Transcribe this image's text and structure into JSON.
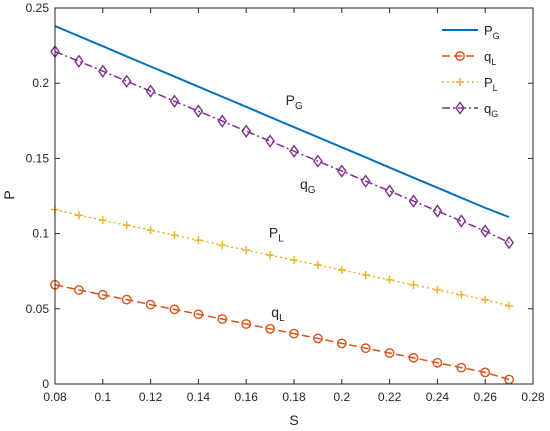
{
  "chart_data": {
    "type": "line",
    "title": "",
    "xlabel": "S",
    "ylabel": "P",
    "xlim": [
      0.08,
      0.28
    ],
    "ylim": [
      0,
      0.25
    ],
    "xticks": [
      "0.08",
      "0.1",
      "0.12",
      "0.14",
      "0.16",
      "0.18",
      "0.2",
      "0.22",
      "0.24",
      "0.26",
      "0.28"
    ],
    "yticks": [
      "0",
      "0.05",
      "0.1",
      "0.15",
      "0.2",
      "0.25"
    ],
    "grid": false,
    "legend_position": "top-right",
    "x": [
      0.08,
      0.09,
      0.1,
      0.11,
      0.12,
      0.13,
      0.14,
      0.15,
      0.16,
      0.17,
      0.18,
      0.19,
      0.2,
      0.21,
      0.22,
      0.23,
      0.24,
      0.25,
      0.26,
      0.27
    ],
    "series": [
      {
        "key": "PG",
        "name": "P",
        "name_sub": "G",
        "color": "#0072bd",
        "style": "solid",
        "marker": "none",
        "values": [
          0.238,
          0.2313,
          0.2246,
          0.2178,
          0.2111,
          0.2044,
          0.1977,
          0.191,
          0.1843,
          0.1775,
          0.1708,
          0.1641,
          0.1574,
          0.1507,
          0.1439,
          0.1372,
          0.1305,
          0.1238,
          0.1171,
          0.111
        ]
      },
      {
        "key": "qL",
        "name": "q",
        "name_sub": "L",
        "color": "#d95319",
        "style": "dashed",
        "marker": "circle",
        "values": [
          0.066,
          0.0625,
          0.0593,
          0.0561,
          0.0528,
          0.0496,
          0.0464,
          0.0432,
          0.0399,
          0.0367,
          0.0335,
          0.0303,
          0.027,
          0.0238,
          0.0206,
          0.0174,
          0.0141,
          0.0109,
          0.0077,
          0.003
        ]
      },
      {
        "key": "PL",
        "name": "P",
        "name_sub": "L",
        "color": "#edb120",
        "style": "dotted",
        "marker": "plus",
        "values": [
          0.116,
          0.1122,
          0.1089,
          0.1056,
          0.1023,
          0.099,
          0.0956,
          0.0923,
          0.089,
          0.0857,
          0.0824,
          0.0791,
          0.0758,
          0.0725,
          0.0692,
          0.0659,
          0.0626,
          0.0593,
          0.056,
          0.052
        ]
      },
      {
        "key": "qG",
        "name": "q",
        "name_sub": "G",
        "color": "#7e2f8e",
        "style": "dashdot",
        "marker": "diamond",
        "values": [
          0.221,
          0.2146,
          0.208,
          0.2013,
          0.1947,
          0.188,
          0.1814,
          0.1748,
          0.1681,
          0.1615,
          0.1548,
          0.1482,
          0.1416,
          0.1349,
          0.1283,
          0.1216,
          0.115,
          0.1084,
          0.1017,
          0.094
        ]
      }
    ],
    "annotations": [
      {
        "text": "P",
        "sub": "G",
        "x": 0.1765,
        "y": 0.1855
      },
      {
        "text": "q",
        "sub": "G",
        "x": 0.1825,
        "y": 0.1295
      },
      {
        "text": "P",
        "sub": "L",
        "x": 0.1695,
        "y": 0.0975
      },
      {
        "text": "q",
        "sub": "L",
        "x": 0.1705,
        "y": 0.0445
      }
    ]
  }
}
